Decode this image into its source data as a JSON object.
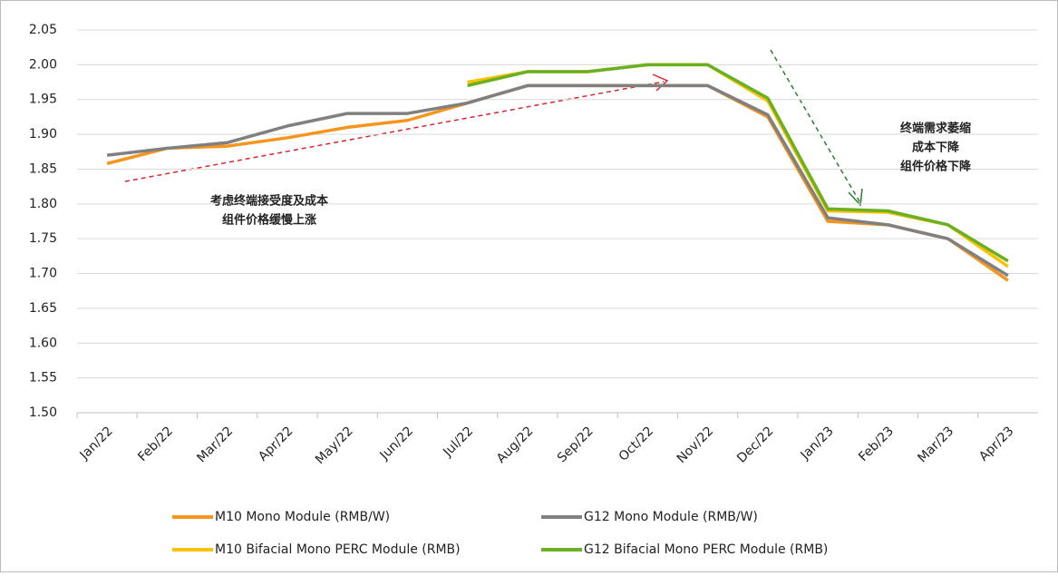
{
  "chart_data": {
    "type": "line",
    "categories": [
      "Jan/22",
      "Feb/22",
      "Mar/22",
      "Apr/22",
      "May/22",
      "Jun/22",
      "Jul/22",
      "Aug/22",
      "Sep/22",
      "Oct/22",
      "Nov/22",
      "Dec/22",
      "Jan/23",
      "Feb/23",
      "Mar/23",
      "Apr/23"
    ],
    "series": [
      {
        "name": "M10 Mono Module (RMB/W)",
        "color": "#f7941d",
        "values": [
          1.858,
          1.88,
          1.883,
          1.895,
          1.91,
          1.92,
          1.945,
          1.97,
          1.97,
          1.97,
          1.97,
          1.925,
          1.775,
          1.77,
          1.75,
          1.69
        ]
      },
      {
        "name": "G12 Mono Module (RMB/W)",
        "color": "#808080",
        "values": [
          1.87,
          1.88,
          1.888,
          1.912,
          1.93,
          1.93,
          1.945,
          1.97,
          1.97,
          1.97,
          1.97,
          1.928,
          1.78,
          1.77,
          1.75,
          1.697
        ]
      },
      {
        "name": "M10 Bifacial Mono PERC Module (RMB)",
        "color": "#ffc000",
        "values": [
          null,
          null,
          null,
          null,
          null,
          null,
          1.975,
          1.99,
          1.99,
          2.0,
          2.0,
          1.948,
          1.79,
          1.788,
          1.77,
          1.71
        ]
      },
      {
        "name": "G12 Bifacial Mono PERC Module (RMB)",
        "color": "#6ab023",
        "values": [
          null,
          null,
          null,
          null,
          null,
          null,
          1.97,
          1.99,
          1.99,
          2.0,
          2.0,
          1.952,
          1.793,
          1.79,
          1.77,
          1.718
        ]
      }
    ],
    "ylim": [
      1.5,
      2.05
    ],
    "yticks": [
      {
        "value": 1.5,
        "label": "1.50"
      },
      1.55,
      {
        "value": 1.6,
        "label": "1.60"
      },
      1.65,
      {
        "value": 1.7,
        "label": "1.70"
      },
      1.75,
      {
        "value": 1.8,
        "label": "1.80"
      },
      1.85,
      {
        "value": 1.9,
        "label": "1.90"
      },
      1.95,
      {
        "value": 2.0,
        "label": "2.00"
      },
      2.05
    ],
    "grid": true,
    "annotations": [
      [
        "考虑终端接受度及成本",
        "组件价格缓慢上涨"
      ],
      [
        "终端需求萎缩",
        "成本下降",
        "组件价格下降"
      ]
    ]
  }
}
